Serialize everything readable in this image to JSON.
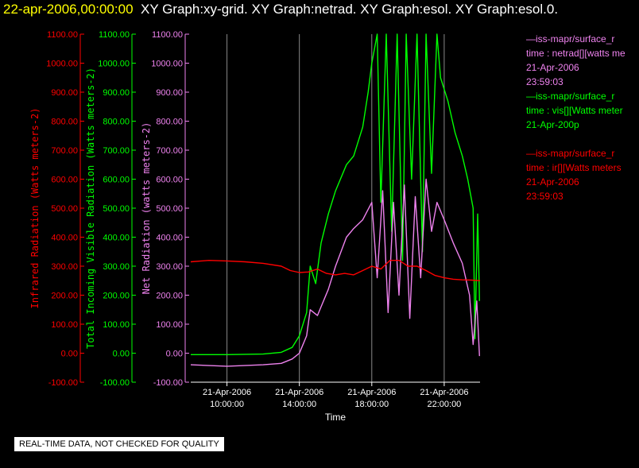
{
  "header": {
    "timestamp": "22-apr-2006,00:00:00",
    "graphs": "XY Graph:xy-grid.  XY Graph:netrad.  XY Graph:esol.  XY Graph:esol.0."
  },
  "legend": [
    {
      "source": "—iss-mapr/surface_r",
      "field": "time : netrad[][watts me",
      "date": "21-Apr-2006",
      "time": "23:59:03",
      "color": "#ee82ee"
    },
    {
      "source": "—iss-mapr/surface_r",
      "field": "time : vis[][Watts meter",
      "date": "21-Apr-200p",
      "time": "",
      "color": "#00ff00"
    },
    {
      "source": "—iss-mapr/surface_r",
      "field": "time : ir[][Watts meters",
      "date": "21-Apr-2006",
      "time": "23:59:03",
      "color": "#ff0000"
    }
  ],
  "quality_note": "REAL-TIME DATA, NOT CHECKED FOR QUALITY",
  "chart_data": {
    "type": "line",
    "xlabel": "Time",
    "x_ticks": [
      {
        "date": "21-Apr-2006",
        "time": "10:00:00",
        "hour": 10
      },
      {
        "date": "21-Apr-2006",
        "time": "14:00:00",
        "hour": 14
      },
      {
        "date": "21-Apr-2006",
        "time": "18:00:00",
        "hour": 18
      },
      {
        "date": "21-Apr-2006",
        "time": "22:00:00",
        "hour": 22
      }
    ],
    "xlim": [
      8,
      23.98
    ],
    "ylim": [
      -100,
      1100
    ],
    "y_ticks": [
      "1100.00",
      "1000.00",
      "900.00",
      "800.00",
      "700.00",
      "600.00",
      "500.00",
      "400.00",
      "300.00",
      "200.00",
      "100.00",
      "0.00",
      "-100.00"
    ],
    "axes": [
      {
        "label": "Infrared Radiation (Watts meters-2)",
        "color": "#ff0000"
      },
      {
        "label": "Total Incoming Visible Radiation (Watts meters-2)",
        "color": "#00ff00"
      },
      {
        "label": "Net Radiation (watts meters-2)",
        "color": "#ee82ee"
      }
    ],
    "vertical_grid": true,
    "series": [
      {
        "name": "vis",
        "color": "#00ff00",
        "points": [
          [
            8,
            -5
          ],
          [
            10,
            -5
          ],
          [
            12,
            -3
          ],
          [
            13,
            3
          ],
          [
            13.6,
            20
          ],
          [
            14,
            60
          ],
          [
            14.4,
            140
          ],
          [
            14.6,
            300
          ],
          [
            14.9,
            240
          ],
          [
            15.2,
            380
          ],
          [
            15.6,
            480
          ],
          [
            16,
            560
          ],
          [
            16.6,
            650
          ],
          [
            17,
            680
          ],
          [
            17.5,
            780
          ],
          [
            17.8,
            900
          ],
          [
            18,
            1000
          ],
          [
            18.3,
            1100
          ],
          [
            18.5,
            520
          ],
          [
            18.8,
            1100
          ],
          [
            19.1,
            420
          ],
          [
            19.4,
            1100
          ],
          [
            19.7,
            320
          ],
          [
            19.9,
            1100
          ],
          [
            20.2,
            600
          ],
          [
            20.5,
            1100
          ],
          [
            20.8,
            350
          ],
          [
            21,
            1100
          ],
          [
            21.3,
            620
          ],
          [
            21.6,
            1100
          ],
          [
            21.8,
            950
          ],
          [
            22.2,
            870
          ],
          [
            22.6,
            760
          ],
          [
            23,
            680
          ],
          [
            23.3,
            600
          ],
          [
            23.6,
            500
          ],
          [
            23.7,
            50
          ],
          [
            23.85,
            480
          ],
          [
            23.95,
            180
          ]
        ]
      },
      {
        "name": "netrad",
        "color": "#ee82ee",
        "points": [
          [
            8,
            -40
          ],
          [
            10,
            -45
          ],
          [
            12,
            -40
          ],
          [
            13,
            -35
          ],
          [
            13.6,
            -20
          ],
          [
            14,
            0
          ],
          [
            14.4,
            60
          ],
          [
            14.6,
            150
          ],
          [
            15,
            130
          ],
          [
            15.6,
            220
          ],
          [
            16,
            300
          ],
          [
            16.6,
            400
          ],
          [
            17,
            430
          ],
          [
            17.5,
            460
          ],
          [
            18,
            520
          ],
          [
            18.3,
            260
          ],
          [
            18.6,
            560
          ],
          [
            18.9,
            140
          ],
          [
            19.2,
            520
          ],
          [
            19.5,
            200
          ],
          [
            19.8,
            580
          ],
          [
            20.1,
            120
          ],
          [
            20.4,
            540
          ],
          [
            20.7,
            260
          ],
          [
            21,
            600
          ],
          [
            21.3,
            420
          ],
          [
            21.6,
            520
          ],
          [
            22,
            460
          ],
          [
            22.5,
            380
          ],
          [
            23,
            310
          ],
          [
            23.4,
            200
          ],
          [
            23.6,
            30
          ],
          [
            23.8,
            180
          ],
          [
            23.95,
            -10
          ]
        ]
      },
      {
        "name": "ir",
        "color": "#ff0000",
        "points": [
          [
            8,
            315
          ],
          [
            9,
            320
          ],
          [
            10,
            318
          ],
          [
            11,
            315
          ],
          [
            12,
            310
          ],
          [
            13,
            300
          ],
          [
            13.5,
            285
          ],
          [
            14,
            278
          ],
          [
            14.5,
            280
          ],
          [
            15,
            290
          ],
          [
            15.5,
            275
          ],
          [
            16,
            270
          ],
          [
            16.5,
            275
          ],
          [
            17,
            270
          ],
          [
            17.5,
            285
          ],
          [
            18,
            300
          ],
          [
            18.5,
            290
          ],
          [
            19,
            320
          ],
          [
            19.5,
            320
          ],
          [
            20,
            300
          ],
          [
            20.5,
            300
          ],
          [
            21,
            285
          ],
          [
            21.5,
            268
          ],
          [
            22,
            260
          ],
          [
            22.5,
            255
          ],
          [
            23,
            253
          ],
          [
            23.5,
            252
          ],
          [
            23.98,
            250
          ]
        ]
      }
    ]
  }
}
